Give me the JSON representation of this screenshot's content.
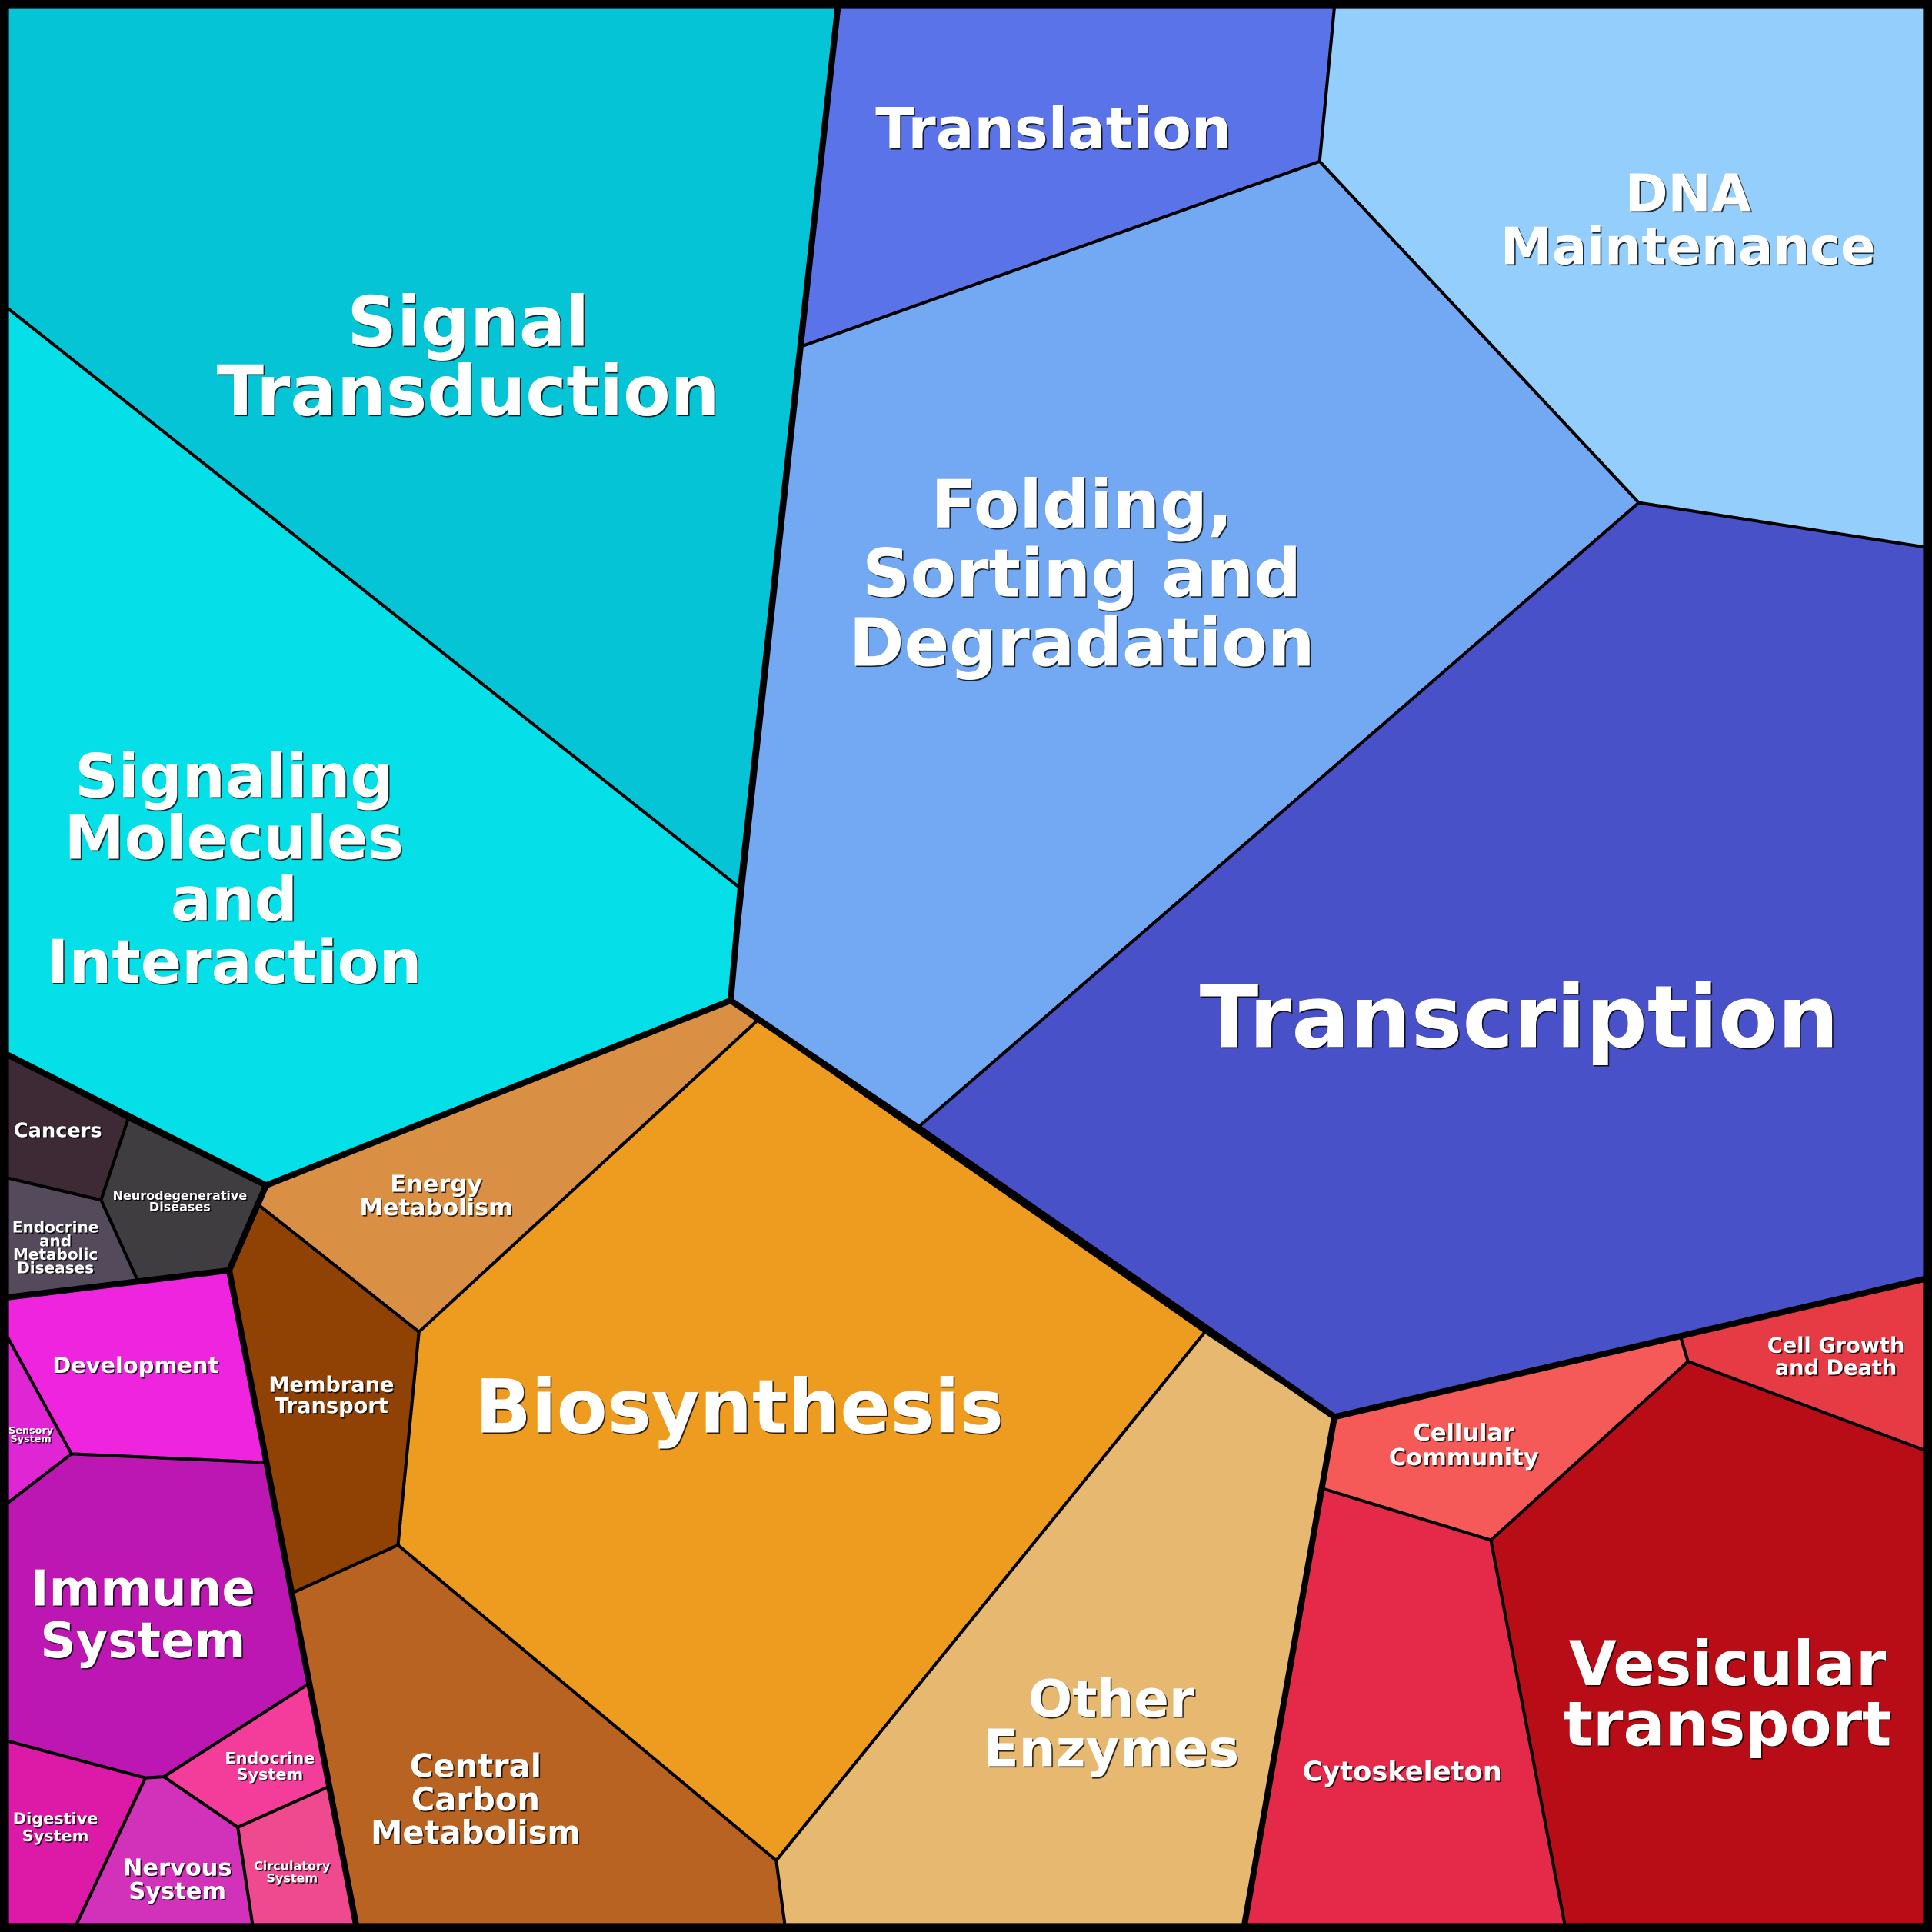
{
  "regions": {
    "signal_transduction": {
      "lines": [
        "Signal",
        "Transduction"
      ],
      "color": "#05c4d6"
    },
    "signaling_molecules": {
      "lines": [
        "Signaling",
        "Molecules",
        "and",
        "Interaction"
      ],
      "color": "#05e0e8"
    },
    "translation": {
      "lines": [
        "Translation"
      ],
      "color": "#5b73e8"
    },
    "dna_maintenance": {
      "lines": [
        "DNA",
        "Maintenance"
      ],
      "color": "#94cefc"
    },
    "folding": {
      "lines": [
        "Folding,",
        "Sorting and",
        "Degradation"
      ],
      "color": "#72a9f2"
    },
    "transcription": {
      "lines": [
        "Transcription"
      ],
      "color": "#4951c9"
    },
    "energy_metabolism": {
      "lines": [
        "Energy",
        "Metabolism"
      ],
      "color": "#da9044"
    },
    "biosynthesis": {
      "lines": [
        "Biosynthesis"
      ],
      "color": "#ed9c1f"
    },
    "membrane_transport": {
      "lines": [
        "Membrane",
        "Transport"
      ],
      "color": "#8f4204"
    },
    "central_carbon": {
      "lines": [
        "Central",
        "Carbon",
        "Metabolism"
      ],
      "color": "#b86322"
    },
    "other_enzymes": {
      "lines": [
        "Other",
        "Enzymes"
      ],
      "color": "#e6b870"
    },
    "cellular_community": {
      "lines": [
        "Cellular",
        "Community"
      ],
      "color": "#f55a58"
    },
    "cell_growth": {
      "lines": [
        "Cell Growth",
        "and Death"
      ],
      "color": "#e63a45"
    },
    "cytoskeleton": {
      "lines": [
        "Cytoskeleton"
      ],
      "color": "#e42a48"
    },
    "vesicular": {
      "lines": [
        "Vesicular",
        "transport"
      ],
      "color": "#b80d16"
    },
    "cancers": {
      "lines": [
        "Cancers"
      ],
      "color": "#3d2a34"
    },
    "neurodegenerative": {
      "lines": [
        "Neurodegenerative",
        "Diseases"
      ],
      "color": "#403d40"
    },
    "endocrine_metabolic": {
      "lines": [
        "Endocrine",
        "and",
        "Metabolic",
        "Diseases"
      ],
      "color": "#554a5c"
    },
    "development": {
      "lines": [
        "Development"
      ],
      "color": "#ee24de"
    },
    "sensory": {
      "lines": [
        "Sensory",
        "System"
      ],
      "color": "#e025d5"
    },
    "immune": {
      "lines": [
        "Immune",
        "System"
      ],
      "color": "#bc16b3"
    },
    "digestive": {
      "lines": [
        "Digestive",
        "System"
      ],
      "color": "#dd1aa7"
    },
    "nervous": {
      "lines": [
        "Nervous",
        "System"
      ],
      "color": "#d232ba"
    },
    "endocrine_system": {
      "lines": [
        "Endocrine",
        "System"
      ],
      "color": "#f43c9a"
    },
    "circulatory": {
      "lines": [
        "Circulatory",
        "System"
      ],
      "color": "#ef4a8f"
    }
  }
}
